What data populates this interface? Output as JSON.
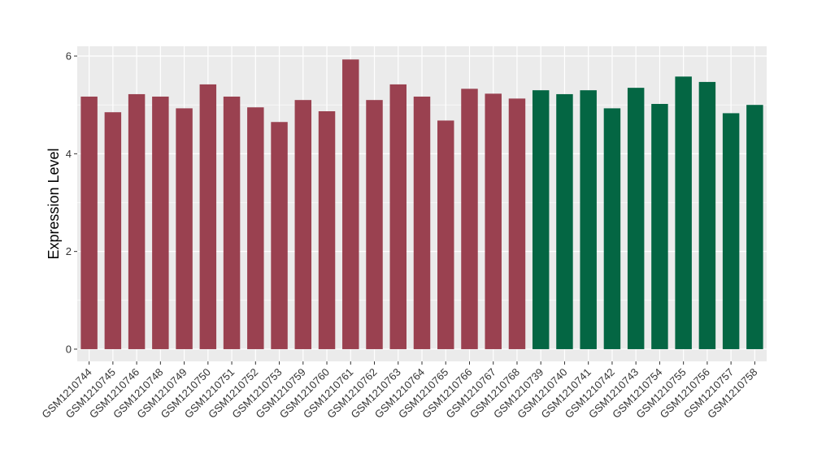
{
  "chart_data": {
    "type": "bar",
    "title": "",
    "xlabel": "",
    "ylabel": "Expression Level",
    "ylim": [
      -0.25,
      6.2
    ],
    "yticks": [
      0,
      2,
      4,
      6
    ],
    "grid": true,
    "legend": "none",
    "colors": {
      "group1": "#9a4150",
      "group2": "#046643",
      "panel": "#ebebeb",
      "grid": "#ffffff"
    },
    "categories": [
      "GSM1210744",
      "GSM1210745",
      "GSM1210746",
      "GSM1210748",
      "GSM1210749",
      "GSM1210750",
      "GSM1210751",
      "GSM1210752",
      "GSM1210753",
      "GSM1210759",
      "GSM1210760",
      "GSM1210761",
      "GSM1210762",
      "GSM1210763",
      "GSM1210764",
      "GSM1210765",
      "GSM1210766",
      "GSM1210767",
      "GSM1210768",
      "GSM1210739",
      "GSM1210740",
      "GSM1210741",
      "GSM1210742",
      "GSM1210743",
      "GSM1210754",
      "GSM1210755",
      "GSM1210756",
      "GSM1210757",
      "GSM1210758"
    ],
    "values": [
      5.17,
      4.85,
      5.22,
      5.17,
      4.93,
      5.42,
      5.17,
      4.95,
      4.65,
      5.1,
      4.87,
      5.93,
      5.1,
      5.42,
      5.17,
      4.68,
      5.33,
      5.23,
      5.13,
      5.3,
      5.22,
      5.3,
      4.93,
      5.35,
      5.02,
      5.58,
      5.47,
      4.83,
      5.0
    ],
    "groups": [
      1,
      1,
      1,
      1,
      1,
      1,
      1,
      1,
      1,
      1,
      1,
      1,
      1,
      1,
      1,
      1,
      1,
      1,
      1,
      2,
      2,
      2,
      2,
      2,
      2,
      2,
      2,
      2,
      2
    ]
  }
}
